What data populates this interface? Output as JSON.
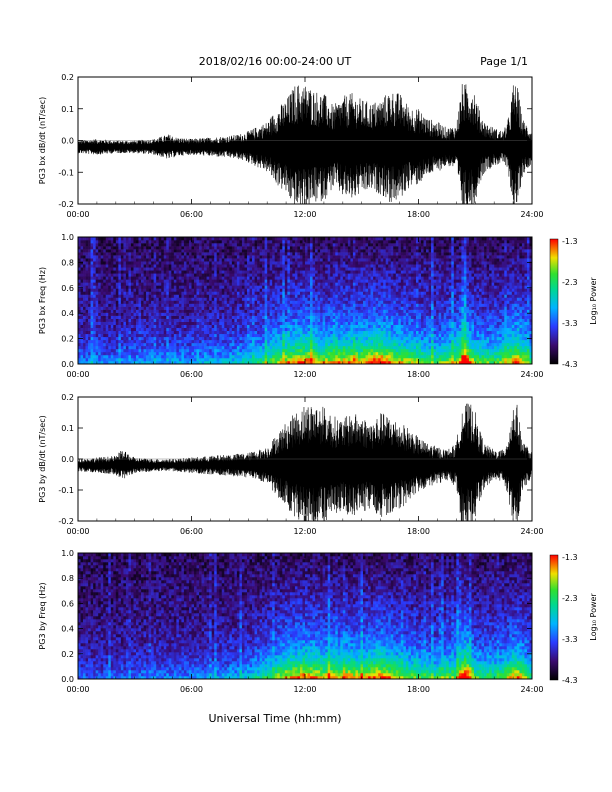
{
  "header": {
    "title": "2018/02/16  00:00-24:00 UT",
    "page": "Page 1/1"
  },
  "footer": {
    "xlabel": "Universal Time (hh:mm)"
  },
  "colorbar": {
    "label": "Log₁₀ Power",
    "ticks": [
      "-1.3",
      "-2.3",
      "-3.3",
      "-4.3"
    ],
    "range": [
      -4.3,
      -1.3
    ]
  },
  "chart_data": [
    {
      "type": "line",
      "name": "wave-bx",
      "ylabel": "PG3 bx dB/dt (nT/sec)",
      "xlabel": "",
      "xlim": [
        0,
        24
      ],
      "ylim": [
        -0.2,
        0.2
      ],
      "xticks": [
        "00:00",
        "06:00",
        "12:00",
        "18:00",
        "24:00"
      ],
      "yticks": [
        "0.2",
        "0.1",
        "0.0",
        "-0.1",
        "-0.2"
      ],
      "color": "#000000",
      "baseline": -0.02,
      "envelope": {
        "x": [
          0,
          1,
          2,
          3,
          4,
          4.8,
          5.2,
          6,
          7,
          8,
          8.5,
          9,
          10,
          10.5,
          11,
          11.5,
          12,
          12.5,
          13,
          13.5,
          14,
          14.5,
          15,
          15.5,
          16,
          16.5,
          17,
          17.5,
          18,
          18.5,
          19,
          19.5,
          20,
          20.3,
          20.6,
          20.9,
          21.2,
          21.5,
          22,
          22.5,
          22.8,
          23,
          23.2,
          23.5,
          24
        ],
        "amplitude": [
          0.02,
          0.025,
          0.02,
          0.02,
          0.025,
          0.04,
          0.03,
          0.025,
          0.03,
          0.035,
          0.04,
          0.05,
          0.08,
          0.12,
          0.15,
          0.2,
          0.2,
          0.18,
          0.17,
          0.13,
          0.16,
          0.17,
          0.15,
          0.14,
          0.15,
          0.18,
          0.17,
          0.13,
          0.12,
          0.09,
          0.08,
          0.06,
          0.07,
          0.2,
          0.2,
          0.2,
          0.12,
          0.08,
          0.06,
          0.05,
          0.1,
          0.2,
          0.2,
          0.09,
          0.05
        ]
      }
    },
    {
      "type": "heatmap",
      "name": "spectrogram-bx",
      "ylabel": "PG3 bx Freq (Hz)",
      "xlabel": "",
      "xlim": [
        0,
        24
      ],
      "ylim": [
        0,
        1.0
      ],
      "xticks": [
        "00:00",
        "06:00",
        "12:00",
        "18:00",
        "24:00"
      ],
      "yticks": [
        "1.0",
        "0.8",
        "0.6",
        "0.4",
        "0.2",
        "0.0"
      ],
      "zlim": [
        -4.3,
        -1.3
      ],
      "activity": {
        "x": [
          0,
          2,
          4,
          6,
          8,
          9,
          10,
          11,
          12,
          13,
          14,
          15,
          16,
          17,
          18,
          19,
          20,
          20.5,
          21,
          22,
          22.8,
          23.2,
          24
        ],
        "level": [
          0.25,
          0.25,
          0.3,
          0.3,
          0.35,
          0.4,
          0.55,
          0.7,
          0.8,
          0.7,
          0.75,
          0.75,
          0.85,
          0.7,
          0.6,
          0.55,
          0.65,
          0.95,
          0.6,
          0.55,
          0.7,
          0.85,
          0.5
        ]
      }
    },
    {
      "type": "line",
      "name": "wave-by",
      "ylabel": "PG3 by dB/dt (nT/sec)",
      "xlabel": "",
      "xlim": [
        0,
        24
      ],
      "ylim": [
        -0.2,
        0.2
      ],
      "xticks": [
        "00:00",
        "06:00",
        "12:00",
        "18:00",
        "24:00"
      ],
      "yticks": [
        "0.2",
        "0.1",
        "0.0",
        "-0.1",
        "-0.2"
      ],
      "color": "#000000",
      "baseline": -0.02,
      "envelope": {
        "x": [
          0,
          1,
          2,
          2.3,
          3,
          4,
          5,
          6,
          7,
          8,
          9,
          10,
          10.5,
          11,
          11.5,
          12,
          12.5,
          13,
          13.5,
          14,
          14.5,
          15,
          15.5,
          16,
          16.5,
          17,
          17.5,
          18,
          18.5,
          19,
          19.5,
          20,
          20.3,
          20.6,
          20.9,
          21.2,
          21.5,
          22,
          22.5,
          22.8,
          23,
          23.2,
          23.5,
          24
        ],
        "amplitude": [
          0.02,
          0.025,
          0.03,
          0.05,
          0.025,
          0.02,
          0.02,
          0.025,
          0.03,
          0.035,
          0.04,
          0.06,
          0.1,
          0.14,
          0.17,
          0.2,
          0.2,
          0.19,
          0.16,
          0.15,
          0.17,
          0.16,
          0.14,
          0.17,
          0.16,
          0.14,
          0.12,
          0.09,
          0.07,
          0.06,
          0.05,
          0.07,
          0.2,
          0.2,
          0.2,
          0.12,
          0.07,
          0.05,
          0.05,
          0.12,
          0.2,
          0.2,
          0.08,
          0.04
        ]
      }
    },
    {
      "type": "heatmap",
      "name": "spectrogram-by",
      "ylabel": "PG3 by Freq (Hz)",
      "xlabel": "Universal Time (hh:mm)",
      "xlim": [
        0,
        24
      ],
      "ylim": [
        0,
        1.0
      ],
      "xticks": [
        "00:00",
        "06:00",
        "12:00",
        "18:00",
        "24:00"
      ],
      "yticks": [
        "1.0",
        "0.8",
        "0.6",
        "0.4",
        "0.2",
        "0.0"
      ],
      "zlim": [
        -4.3,
        -1.3
      ],
      "activity": {
        "x": [
          0,
          2,
          4,
          6,
          8,
          9,
          10,
          11,
          12,
          13,
          14,
          15,
          16,
          17,
          18,
          19,
          20,
          20.5,
          21,
          22,
          22.8,
          23.2,
          24
        ],
        "level": [
          0.2,
          0.2,
          0.25,
          0.25,
          0.3,
          0.35,
          0.5,
          0.7,
          0.8,
          0.7,
          0.75,
          0.7,
          0.8,
          0.65,
          0.55,
          0.5,
          0.6,
          0.95,
          0.55,
          0.5,
          0.65,
          0.8,
          0.45
        ]
      }
    }
  ]
}
